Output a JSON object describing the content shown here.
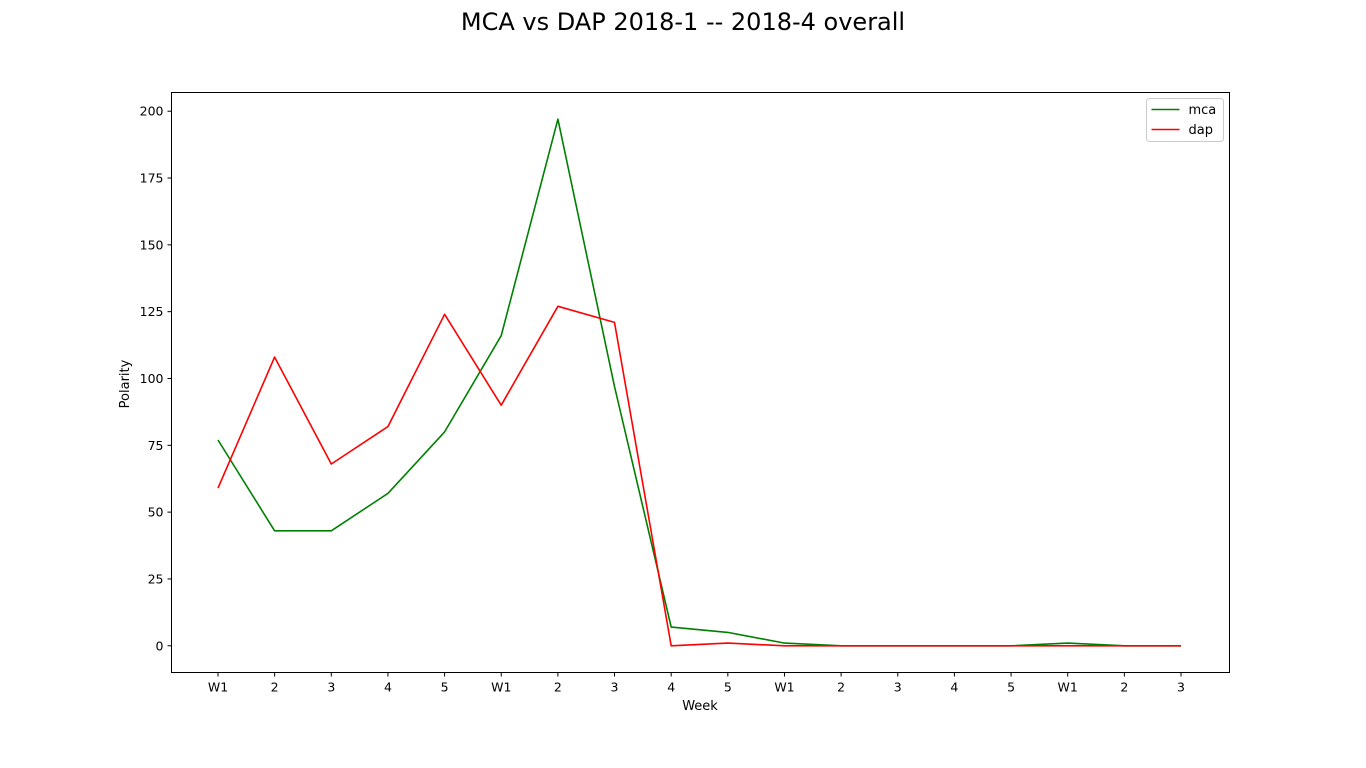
{
  "chart_data": {
    "type": "line",
    "title": "MCA vs DAP 2018-1 -- 2018-4 overall",
    "xlabel": "Week",
    "ylabel": "Polarity",
    "categories": [
      "W1",
      "2",
      "3",
      "4",
      "5",
      "W1",
      "2",
      "3",
      "4",
      "5",
      "W1",
      "2",
      "3",
      "4",
      "5",
      "W1",
      "2",
      "3"
    ],
    "ylim": [
      -10,
      207
    ],
    "yticks": [
      0,
      25,
      50,
      75,
      100,
      125,
      150,
      175,
      200
    ],
    "grid": false,
    "legend_position": "top-right",
    "series": [
      {
        "name": "mca",
        "color": "#008000",
        "values": [
          77,
          43,
          43,
          57,
          80,
          116,
          197,
          97,
          7,
          5,
          1,
          0,
          0,
          0,
          0,
          1,
          0,
          0
        ]
      },
      {
        "name": "dap",
        "color": "#ff0000",
        "values": [
          59,
          108,
          68,
          82,
          124,
          90,
          127,
          121,
          0,
          1,
          0,
          0,
          0,
          0,
          0,
          0,
          0,
          0
        ]
      }
    ]
  }
}
